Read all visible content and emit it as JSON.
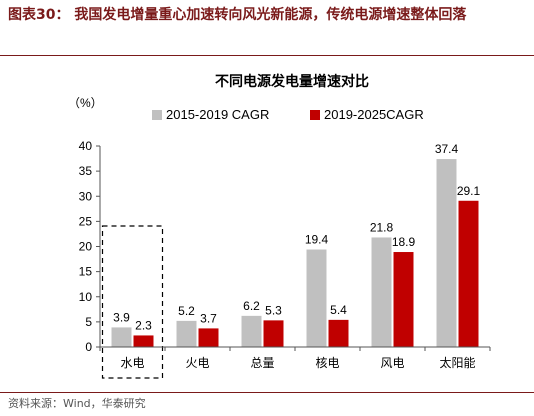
{
  "figure": {
    "title": "图表30：  我国发电增量重心加速转向风光新能源，传统电源增速整体回落",
    "source": "资料来源：Wind，华泰研究"
  },
  "chart_data": {
    "type": "bar",
    "title": "不同电源发电量增速对比",
    "unit_label": "（%）",
    "categories": [
      "水电",
      "火电",
      "总量",
      "核电",
      "风电",
      "太阳能"
    ],
    "series": [
      {
        "name": "2015-2019 CAGR",
        "color": "#c0c0c0",
        "values": [
          3.9,
          5.2,
          6.2,
          19.4,
          21.8,
          37.4
        ]
      },
      {
        "name": "2019-2025CAGR",
        "color": "#c00000",
        "values": [
          2.3,
          3.7,
          5.3,
          5.4,
          18.9,
          29.1
        ]
      }
    ],
    "ylim": [
      0,
      40
    ],
    "yticks": [
      0,
      5,
      10,
      15,
      20,
      25,
      30,
      35,
      40
    ],
    "legend_position": "top-center",
    "grid": false,
    "highlight_category": "水电"
  }
}
